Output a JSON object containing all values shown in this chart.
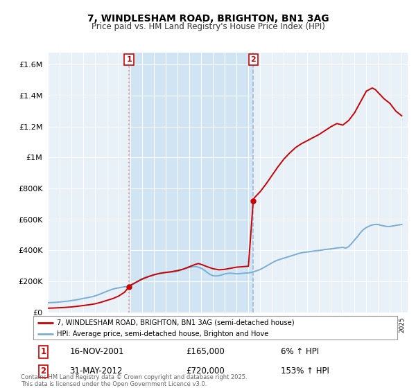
{
  "title": "7, WINDLESHAM ROAD, BRIGHTON, BN1 3AG",
  "subtitle": "Price paid vs. HM Land Registry's House Price Index (HPI)",
  "ytick_values": [
    0,
    200000,
    400000,
    600000,
    800000,
    1000000,
    1200000,
    1400000,
    1600000
  ],
  "ylim": [
    0,
    1680000
  ],
  "xlim_start": 1995.0,
  "xlim_end": 2025.5,
  "sale1_x": 2001.88,
  "sale1_y": 165000,
  "sale1_label": "1",
  "sale1_date": "16-NOV-2001",
  "sale1_price": "£165,000",
  "sale1_hpi": "6% ↑ HPI",
  "sale2_x": 2012.41,
  "sale2_y": 720000,
  "sale2_label": "2",
  "sale2_date": "31-MAY-2012",
  "sale2_price": "£720,000",
  "sale2_hpi": "153% ↑ HPI",
  "property_line_color": "#cc0000",
  "hpi_line_color": "#7aadd4",
  "sale1_vline_color": "#e8a0a0",
  "sale2_vline_color": "#a0b8d8",
  "marker_box_color": "#cc0000",
  "bg_plot_color": "#e8f0f8",
  "bg_highlight_color": "#d0e4f4",
  "legend_property": "7, WINDLESHAM ROAD, BRIGHTON, BN1 3AG (semi-detached house)",
  "legend_hpi": "HPI: Average price, semi-detached house, Brighton and Hove",
  "footnote": "Contains HM Land Registry data © Crown copyright and database right 2025.\nThis data is licensed under the Open Government Licence v3.0.",
  "hpi_data_x": [
    1995.0,
    1995.25,
    1995.5,
    1995.75,
    1996.0,
    1996.25,
    1996.5,
    1996.75,
    1997.0,
    1997.25,
    1997.5,
    1997.75,
    1998.0,
    1998.25,
    1998.5,
    1998.75,
    1999.0,
    1999.25,
    1999.5,
    1999.75,
    2000.0,
    2000.25,
    2000.5,
    2000.75,
    2001.0,
    2001.25,
    2001.5,
    2001.75,
    2002.0,
    2002.25,
    2002.5,
    2002.75,
    2003.0,
    2003.25,
    2003.5,
    2003.75,
    2004.0,
    2004.25,
    2004.5,
    2004.75,
    2005.0,
    2005.25,
    2005.5,
    2005.75,
    2006.0,
    2006.25,
    2006.5,
    2006.75,
    2007.0,
    2007.25,
    2007.5,
    2007.75,
    2008.0,
    2008.25,
    2008.5,
    2008.75,
    2009.0,
    2009.25,
    2009.5,
    2009.75,
    2010.0,
    2010.25,
    2010.5,
    2010.75,
    2011.0,
    2011.25,
    2011.5,
    2011.75,
    2012.0,
    2012.25,
    2012.5,
    2012.75,
    2013.0,
    2013.25,
    2013.5,
    2013.75,
    2014.0,
    2014.25,
    2014.5,
    2014.75,
    2015.0,
    2015.25,
    2015.5,
    2015.75,
    2016.0,
    2016.25,
    2016.5,
    2016.75,
    2017.0,
    2017.25,
    2017.5,
    2017.75,
    2018.0,
    2018.25,
    2018.5,
    2018.75,
    2019.0,
    2019.25,
    2019.5,
    2019.75,
    2020.0,
    2020.25,
    2020.5,
    2020.75,
    2021.0,
    2021.25,
    2021.5,
    2021.75,
    2022.0,
    2022.25,
    2022.5,
    2022.75,
    2023.0,
    2023.25,
    2023.5,
    2023.75,
    2024.0,
    2024.25,
    2024.5,
    2024.75,
    2025.0
  ],
  "hpi_data_y": [
    62000,
    63000,
    64000,
    65000,
    67000,
    69000,
    71000,
    73000,
    76000,
    79000,
    82000,
    86000,
    90000,
    93000,
    97000,
    101000,
    106000,
    113000,
    120000,
    128000,
    136000,
    143000,
    150000,
    155000,
    158000,
    162000,
    165000,
    167000,
    172000,
    182000,
    195000,
    208000,
    218000,
    226000,
    232000,
    237000,
    242000,
    248000,
    253000,
    256000,
    257000,
    258000,
    260000,
    262000,
    266000,
    272000,
    279000,
    285000,
    290000,
    295000,
    296000,
    292000,
    285000,
    273000,
    258000,
    245000,
    237000,
    235000,
    237000,
    242000,
    248000,
    252000,
    253000,
    251000,
    249000,
    250000,
    252000,
    254000,
    255000,
    258000,
    264000,
    270000,
    277000,
    287000,
    298000,
    309000,
    320000,
    330000,
    338000,
    344000,
    350000,
    356000,
    362000,
    368000,
    374000,
    380000,
    385000,
    388000,
    390000,
    393000,
    396000,
    398000,
    400000,
    403000,
    406000,
    408000,
    410000,
    413000,
    416000,
    418000,
    420000,
    415000,
    425000,
    445000,
    468000,
    490000,
    515000,
    535000,
    548000,
    558000,
    565000,
    568000,
    568000,
    562000,
    558000,
    555000,
    555000,
    558000,
    562000,
    565000,
    568000
  ],
  "property_data_x": [
    1995.0,
    1995.5,
    1996.0,
    1996.5,
    1997.0,
    1997.5,
    1998.0,
    1998.5,
    1999.0,
    1999.5,
    2000.0,
    2000.5,
    2001.0,
    2001.5,
    2001.88,
    2002.0,
    2002.5,
    2003.0,
    2003.5,
    2004.0,
    2004.5,
    2005.0,
    2005.5,
    2006.0,
    2006.5,
    2007.0,
    2007.5,
    2007.75,
    2008.0,
    2008.5,
    2009.0,
    2009.5,
    2010.0,
    2010.5,
    2011.0,
    2011.5,
    2012.0,
    2012.41,
    2012.5,
    2013.0,
    2013.5,
    2014.0,
    2014.5,
    2015.0,
    2015.5,
    2016.0,
    2016.5,
    2017.0,
    2017.5,
    2018.0,
    2018.5,
    2019.0,
    2019.5,
    2020.0,
    2020.5,
    2021.0,
    2021.5,
    2022.0,
    2022.5,
    2022.75,
    2023.0,
    2023.5,
    2024.0,
    2024.5,
    2025.0
  ],
  "property_data_y": [
    27000,
    28000,
    30000,
    32000,
    35000,
    39000,
    44000,
    49000,
    55000,
    65000,
    77000,
    89000,
    105000,
    130000,
    165000,
    175000,
    195000,
    215000,
    230000,
    243000,
    252000,
    258000,
    263000,
    270000,
    280000,
    295000,
    310000,
    315000,
    310000,
    295000,
    282000,
    275000,
    278000,
    285000,
    292000,
    295000,
    298000,
    720000,
    740000,
    780000,
    830000,
    885000,
    940000,
    990000,
    1030000,
    1065000,
    1090000,
    1110000,
    1130000,
    1150000,
    1175000,
    1200000,
    1220000,
    1210000,
    1240000,
    1290000,
    1360000,
    1430000,
    1450000,
    1440000,
    1420000,
    1380000,
    1350000,
    1300000,
    1270000
  ]
}
